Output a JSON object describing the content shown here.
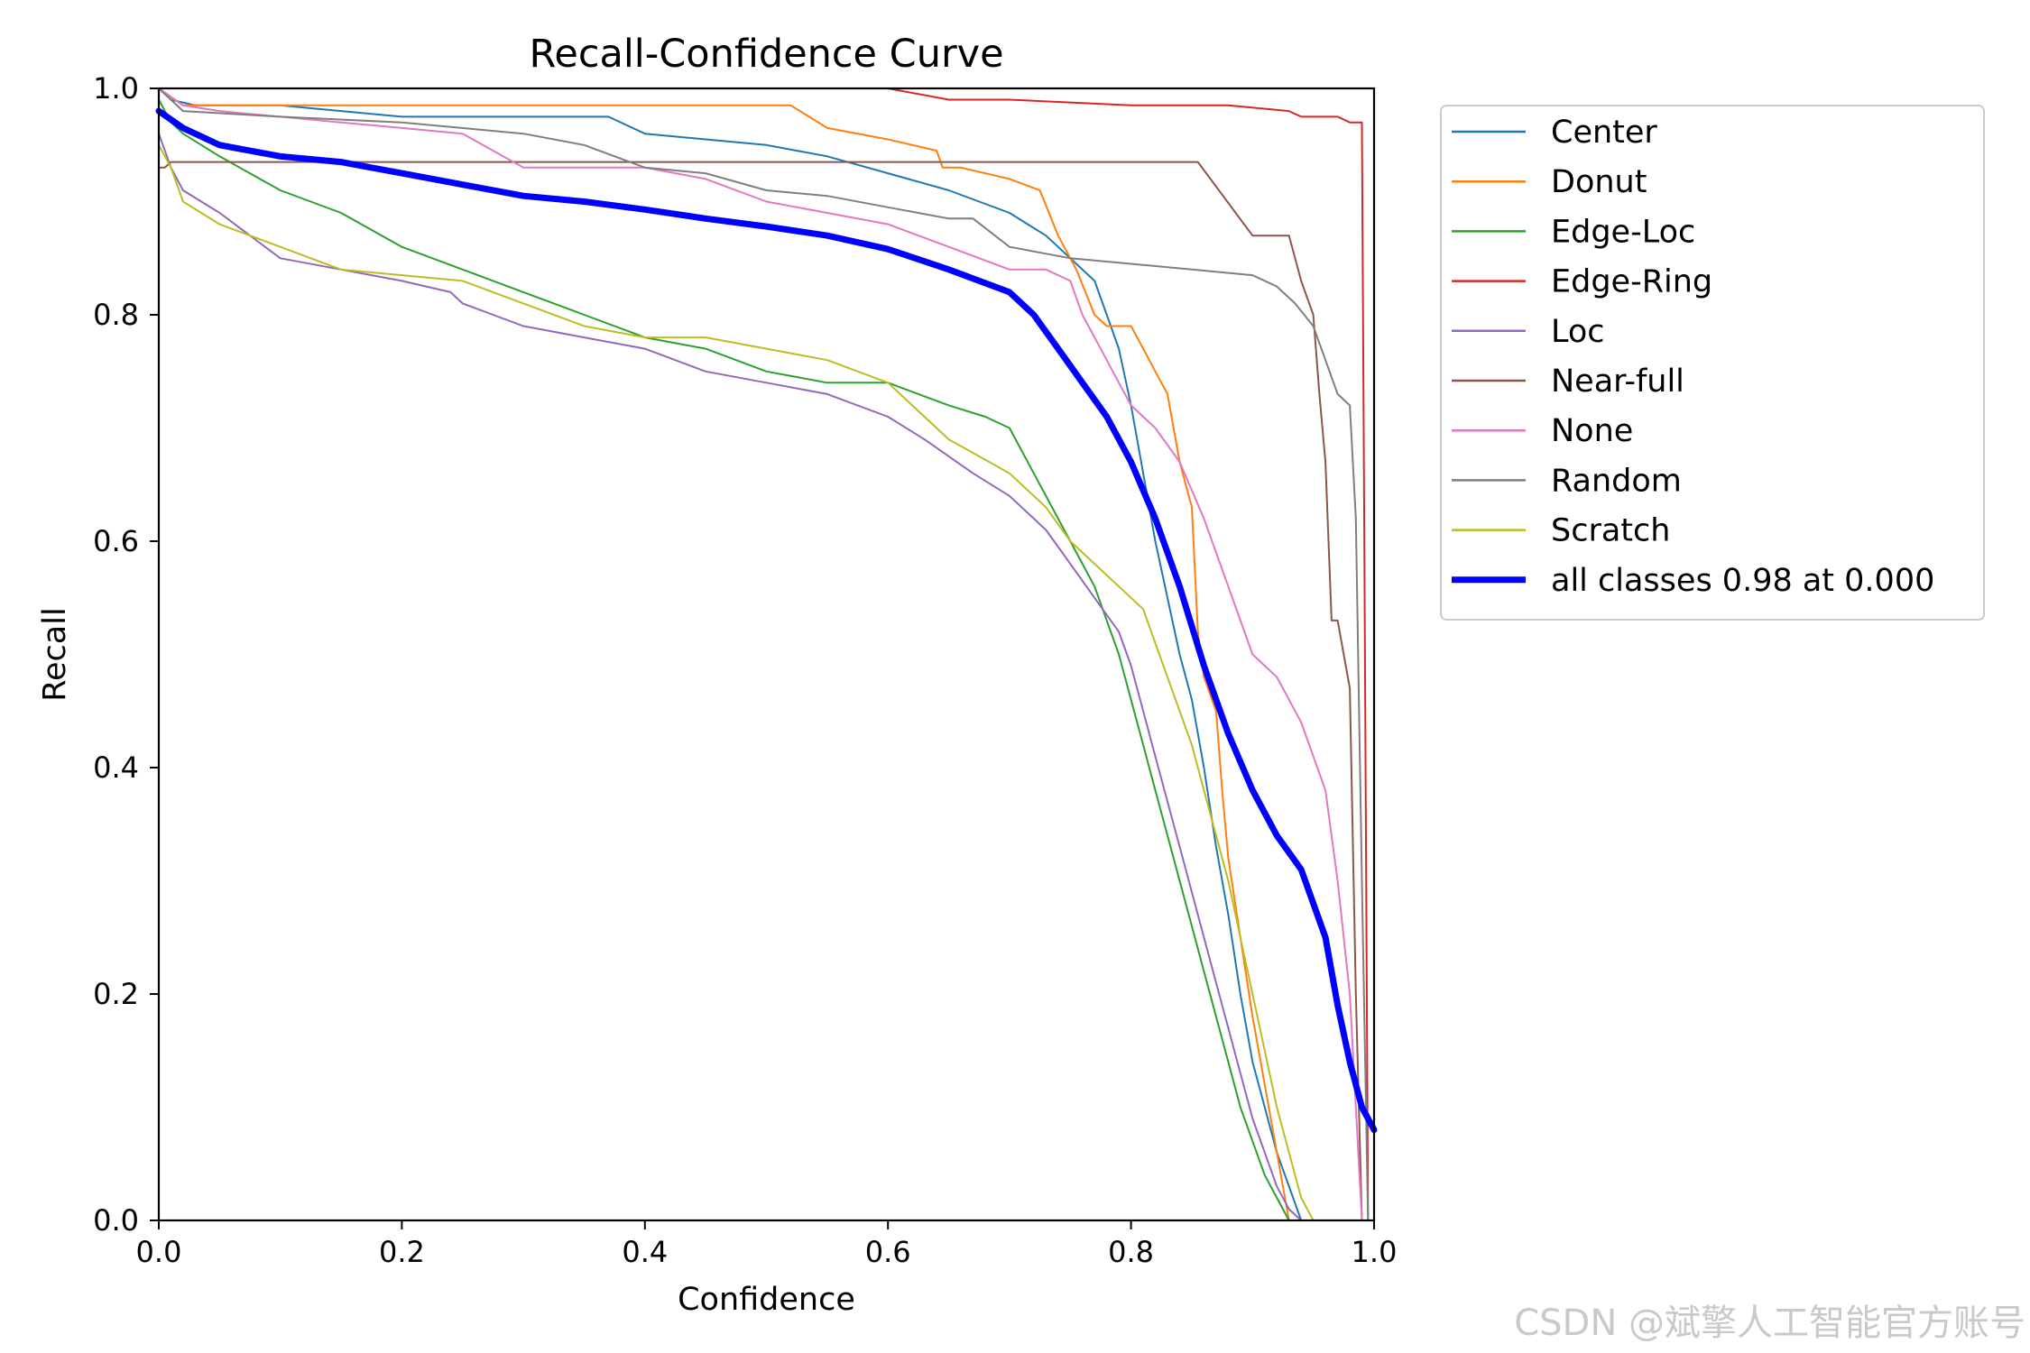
{
  "chart_data": {
    "type": "line",
    "title": "Recall-Confidence Curve",
    "xlabel": "Confidence",
    "ylabel": "Recall",
    "xlim": [
      0,
      1
    ],
    "ylim": [
      0,
      1
    ],
    "xticks": [
      "0.0",
      "0.2",
      "0.4",
      "0.6",
      "0.8",
      "1.0"
    ],
    "yticks": [
      "0.0",
      "0.2",
      "0.4",
      "0.6",
      "0.8",
      "1.0"
    ],
    "grid": false,
    "legend_position": "outside-right",
    "series": [
      {
        "name": "Center",
        "color": "#1f77b4",
        "width": 2,
        "x": [
          0,
          0.01,
          0.03,
          0.1,
          0.2,
          0.3,
          0.37,
          0.4,
          0.45,
          0.5,
          0.55,
          0.6,
          0.65,
          0.7,
          0.73,
          0.75,
          0.77,
          0.78,
          0.79,
          0.8,
          0.81,
          0.82,
          0.83,
          0.84,
          0.85,
          0.86,
          0.87,
          0.88,
          0.89,
          0.9,
          0.91,
          0.92,
          0.93,
          0.94
        ],
        "y": [
          1.0,
          0.99,
          0.985,
          0.985,
          0.975,
          0.975,
          0.975,
          0.96,
          0.955,
          0.95,
          0.94,
          0.925,
          0.91,
          0.89,
          0.87,
          0.85,
          0.83,
          0.8,
          0.77,
          0.72,
          0.66,
          0.6,
          0.55,
          0.5,
          0.46,
          0.4,
          0.33,
          0.27,
          0.2,
          0.14,
          0.1,
          0.06,
          0.03,
          0.0
        ]
      },
      {
        "name": "Donut",
        "color": "#ff7f0e",
        "width": 2,
        "x": [
          0,
          0.02,
          0.1,
          0.3,
          0.5,
          0.52,
          0.55,
          0.6,
          0.64,
          0.645,
          0.66,
          0.7,
          0.725,
          0.74,
          0.755,
          0.77,
          0.78,
          0.8,
          0.81,
          0.82,
          0.83,
          0.84,
          0.85,
          0.855,
          0.86,
          0.87,
          0.875,
          0.88,
          0.89,
          0.9,
          0.91,
          0.92,
          0.93
        ],
        "y": [
          1.0,
          0.985,
          0.985,
          0.985,
          0.985,
          0.985,
          0.965,
          0.955,
          0.945,
          0.93,
          0.93,
          0.92,
          0.91,
          0.87,
          0.84,
          0.8,
          0.79,
          0.79,
          0.77,
          0.75,
          0.73,
          0.67,
          0.63,
          0.52,
          0.48,
          0.45,
          0.38,
          0.32,
          0.25,
          0.18,
          0.12,
          0.06,
          0.0
        ]
      },
      {
        "name": "Edge-Loc",
        "color": "#2ca02c",
        "width": 2,
        "x": [
          0,
          0.01,
          0.02,
          0.05,
          0.1,
          0.15,
          0.2,
          0.25,
          0.3,
          0.35,
          0.4,
          0.45,
          0.5,
          0.55,
          0.6,
          0.65,
          0.68,
          0.7,
          0.72,
          0.75,
          0.77,
          0.78,
          0.79,
          0.8,
          0.81,
          0.82,
          0.83,
          0.84,
          0.85,
          0.86,
          0.87,
          0.88,
          0.89,
          0.9,
          0.91,
          0.92,
          0.93
        ],
        "y": [
          0.99,
          0.97,
          0.96,
          0.94,
          0.91,
          0.89,
          0.86,
          0.84,
          0.82,
          0.8,
          0.78,
          0.77,
          0.75,
          0.74,
          0.74,
          0.72,
          0.71,
          0.7,
          0.66,
          0.6,
          0.56,
          0.53,
          0.5,
          0.46,
          0.42,
          0.38,
          0.34,
          0.3,
          0.26,
          0.22,
          0.18,
          0.14,
          0.1,
          0.07,
          0.04,
          0.02,
          0.0
        ]
      },
      {
        "name": "Edge-Ring",
        "color": "#d62728",
        "width": 2,
        "x": [
          0,
          0.3,
          0.6,
          0.65,
          0.7,
          0.8,
          0.88,
          0.93,
          0.94,
          0.95,
          0.97,
          0.98,
          0.99,
          0.992,
          0.995
        ],
        "y": [
          1.0,
          1.0,
          1.0,
          0.99,
          0.99,
          0.985,
          0.985,
          0.98,
          0.975,
          0.975,
          0.975,
          0.97,
          0.97,
          0.6,
          0.0
        ]
      },
      {
        "name": "Loc",
        "color": "#9467bd",
        "width": 2,
        "x": [
          0,
          0.01,
          0.02,
          0.05,
          0.1,
          0.15,
          0.2,
          0.24,
          0.25,
          0.3,
          0.35,
          0.4,
          0.45,
          0.5,
          0.55,
          0.6,
          0.63,
          0.67,
          0.7,
          0.73,
          0.75,
          0.77,
          0.79,
          0.8,
          0.81,
          0.82,
          0.83,
          0.84,
          0.85,
          0.86,
          0.87,
          0.88,
          0.89,
          0.9,
          0.91,
          0.92,
          0.93,
          0.94
        ],
        "y": [
          0.96,
          0.93,
          0.91,
          0.89,
          0.85,
          0.84,
          0.83,
          0.82,
          0.81,
          0.79,
          0.78,
          0.77,
          0.75,
          0.74,
          0.73,
          0.71,
          0.69,
          0.66,
          0.64,
          0.61,
          0.58,
          0.55,
          0.52,
          0.49,
          0.45,
          0.41,
          0.37,
          0.33,
          0.29,
          0.25,
          0.21,
          0.17,
          0.13,
          0.09,
          0.06,
          0.03,
          0.01,
          0.0
        ]
      },
      {
        "name": "Near-full",
        "color": "#8c564b",
        "width": 2,
        "x": [
          0,
          0.005,
          0.01,
          0.1,
          0.3,
          0.5,
          0.7,
          0.8,
          0.855,
          0.9,
          0.93,
          0.94,
          0.95,
          0.955,
          0.96,
          0.965,
          0.97,
          0.98,
          0.985,
          0.99,
          0.995
        ],
        "y": [
          0.93,
          0.93,
          0.935,
          0.935,
          0.935,
          0.935,
          0.935,
          0.935,
          0.935,
          0.87,
          0.87,
          0.83,
          0.8,
          0.73,
          0.67,
          0.53,
          0.53,
          0.47,
          0.2,
          0.0,
          0.0
        ]
      },
      {
        "name": "None",
        "color": "#e377c2",
        "width": 2,
        "x": [
          0,
          0.02,
          0.05,
          0.1,
          0.15,
          0.2,
          0.25,
          0.3,
          0.35,
          0.4,
          0.45,
          0.5,
          0.55,
          0.6,
          0.65,
          0.7,
          0.73,
          0.75,
          0.76,
          0.77,
          0.78,
          0.79,
          0.8,
          0.82,
          0.84,
          0.86,
          0.88,
          0.9,
          0.92,
          0.94,
          0.96,
          0.97,
          0.98,
          0.985,
          0.99
        ],
        "y": [
          1.0,
          0.985,
          0.98,
          0.975,
          0.97,
          0.965,
          0.96,
          0.93,
          0.93,
          0.93,
          0.92,
          0.9,
          0.89,
          0.88,
          0.86,
          0.84,
          0.84,
          0.83,
          0.8,
          0.78,
          0.76,
          0.74,
          0.72,
          0.7,
          0.67,
          0.62,
          0.56,
          0.5,
          0.48,
          0.44,
          0.38,
          0.3,
          0.2,
          0.1,
          0.0
        ]
      },
      {
        "name": "Random",
        "color": "#7f7f7f",
        "width": 2,
        "x": [
          0,
          0.02,
          0.1,
          0.2,
          0.3,
          0.35,
          0.4,
          0.45,
          0.5,
          0.55,
          0.6,
          0.65,
          0.67,
          0.7,
          0.75,
          0.8,
          0.85,
          0.9,
          0.92,
          0.935,
          0.95,
          0.96,
          0.97,
          0.98,
          0.985,
          0.99,
          0.995
        ],
        "y": [
          1.0,
          0.98,
          0.975,
          0.97,
          0.96,
          0.95,
          0.93,
          0.925,
          0.91,
          0.905,
          0.895,
          0.885,
          0.885,
          0.86,
          0.85,
          0.845,
          0.84,
          0.835,
          0.825,
          0.81,
          0.79,
          0.76,
          0.73,
          0.72,
          0.62,
          0.3,
          0.0
        ]
      },
      {
        "name": "Scratch",
        "color": "#bcbd22",
        "width": 2,
        "x": [
          0,
          0.01,
          0.02,
          0.05,
          0.1,
          0.15,
          0.2,
          0.25,
          0.3,
          0.35,
          0.4,
          0.45,
          0.5,
          0.55,
          0.6,
          0.63,
          0.65,
          0.7,
          0.73,
          0.75,
          0.77,
          0.79,
          0.81,
          0.82,
          0.83,
          0.84,
          0.85,
          0.86,
          0.87,
          0.88,
          0.89,
          0.9,
          0.91,
          0.92,
          0.93,
          0.94,
          0.95,
          1.0
        ],
        "y": [
          0.95,
          0.93,
          0.9,
          0.88,
          0.86,
          0.84,
          0.835,
          0.83,
          0.81,
          0.79,
          0.78,
          0.78,
          0.77,
          0.76,
          0.74,
          0.71,
          0.69,
          0.66,
          0.63,
          0.6,
          0.58,
          0.56,
          0.54,
          0.51,
          0.48,
          0.45,
          0.42,
          0.38,
          0.34,
          0.3,
          0.25,
          0.2,
          0.15,
          0.1,
          0.06,
          0.02,
          0.0,
          0.0
        ]
      },
      {
        "name": "all classes 0.98 at 0.000",
        "color": "#0000ff",
        "width": 7,
        "x": [
          0,
          0.02,
          0.05,
          0.1,
          0.15,
          0.2,
          0.25,
          0.3,
          0.35,
          0.4,
          0.45,
          0.5,
          0.55,
          0.6,
          0.65,
          0.7,
          0.72,
          0.74,
          0.76,
          0.78,
          0.8,
          0.82,
          0.84,
          0.86,
          0.88,
          0.9,
          0.92,
          0.94,
          0.96,
          0.97,
          0.98,
          0.99,
          1.0
        ],
        "y": [
          0.98,
          0.965,
          0.95,
          0.94,
          0.935,
          0.925,
          0.915,
          0.905,
          0.9,
          0.893,
          0.885,
          0.878,
          0.87,
          0.858,
          0.84,
          0.82,
          0.8,
          0.77,
          0.74,
          0.71,
          0.67,
          0.62,
          0.56,
          0.49,
          0.43,
          0.38,
          0.34,
          0.31,
          0.25,
          0.19,
          0.14,
          0.1,
          0.08
        ]
      }
    ]
  },
  "watermark": "CSDN @斌擎人工智能官方账号"
}
